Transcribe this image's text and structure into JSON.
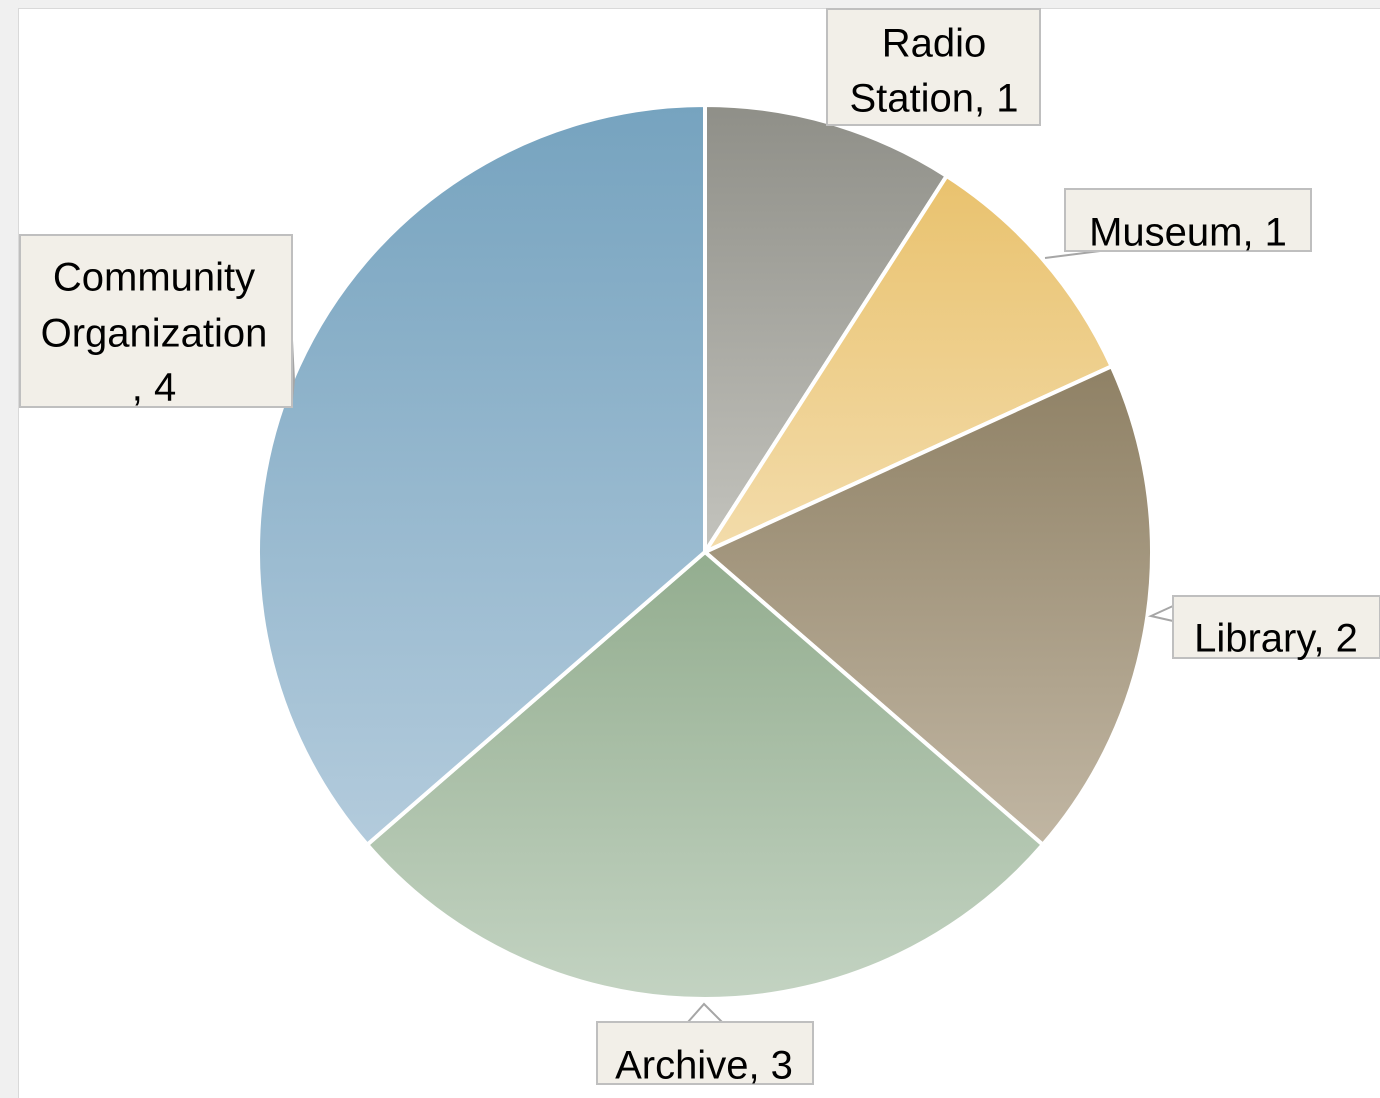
{
  "chart_data": {
    "type": "pie",
    "slices": [
      {
        "label": "Radio Station",
        "value": 1,
        "display": [
          "Radio",
          "Station, 1"
        ],
        "color_top": "#8f8f88",
        "color_bottom": "#c3c3bd"
      },
      {
        "label": "Museum",
        "value": 1,
        "display": [
          "Museum, 1"
        ],
        "color_top": "#e9c26e",
        "color_bottom": "#f3dcab"
      },
      {
        "label": "Library",
        "value": 2,
        "display": [
          "Library, 2"
        ],
        "color_top": "#8f8165",
        "color_bottom": "#c1b6a3"
      },
      {
        "label": "Archive",
        "value": 3,
        "display": [
          "Archive, 3"
        ],
        "color_top": "#93ad8f",
        "color_bottom": "#c3d3c2"
      },
      {
        "label": "Community Organization",
        "value": 4,
        "display": [
          "Community",
          "Organization",
          ", 4"
        ],
        "color_top": "#76a3bf",
        "color_bottom": "#b3cbdc"
      }
    ],
    "start_angle_deg": 0,
    "direction": "clockwise",
    "data_labels": "category, value"
  }
}
